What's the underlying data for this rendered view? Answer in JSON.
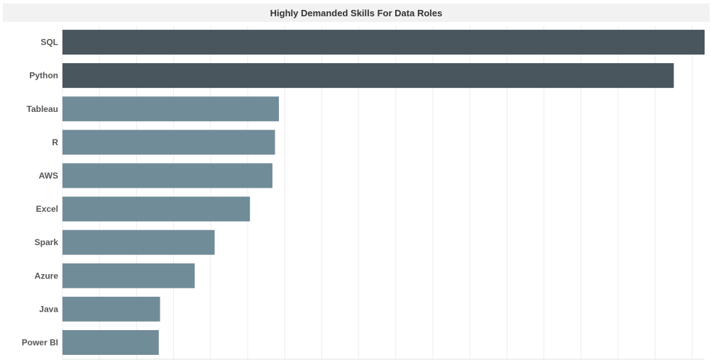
{
  "chart_data": {
    "type": "bar",
    "orientation": "horizontal",
    "title": "Highly Demanded Skills For Data Roles",
    "categories": [
      "SQL",
      "Python",
      "Tableau",
      "R",
      "AWS",
      "Excel",
      "Spark",
      "Azure",
      "Java",
      "Power BI"
    ],
    "values": [
      100,
      95.2,
      33.7,
      33.1,
      32.7,
      29.2,
      23.7,
      20.6,
      15.2,
      15.0
    ],
    "highlight_categories": [
      "SQL",
      "Python"
    ],
    "xlim": [
      0,
      100
    ],
    "grid": true,
    "legend": "none",
    "colors": {
      "highlight": "#4a565e",
      "default": "#718c99",
      "grid": "#ececec",
      "title_background": "#f2f2f2"
    }
  }
}
